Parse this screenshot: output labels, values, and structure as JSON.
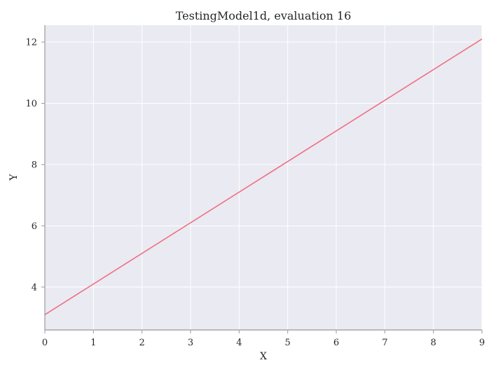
{
  "chart_data": {
    "type": "line",
    "title": "TestingModel1d, evaluation 16",
    "xlabel": "X",
    "ylabel": "Y",
    "xlim": [
      0,
      9
    ],
    "ylim": [
      2.6,
      12.55
    ],
    "xticks": [
      0,
      1,
      2,
      3,
      4,
      5,
      6,
      7,
      8,
      9
    ],
    "yticks": [
      4,
      6,
      8,
      10,
      12
    ],
    "grid": true,
    "series": [
      {
        "x": [
          0,
          9
        ],
        "y": [
          3.1,
          12.1
        ],
        "color": "#f07080"
      }
    ],
    "colors": {
      "background": "#eaeaf2",
      "grid": "#ffffff",
      "axis": "#999999"
    }
  }
}
